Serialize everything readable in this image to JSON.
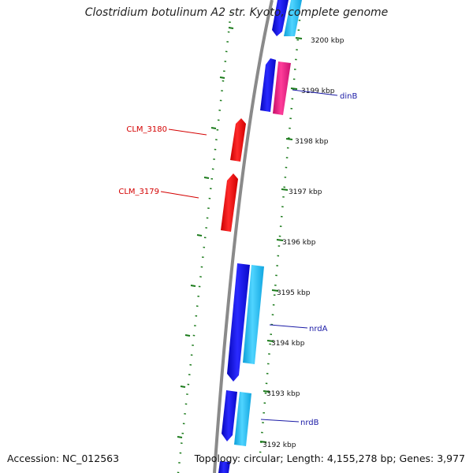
{
  "title": "Clostridium botulinum A2 str. Kyoto, complete genome",
  "accession_text": "Accession: NC_012563",
  "summary_text": "Topology: circular; Length: 4,155,278 bp; Genes: 3,977",
  "colors": {
    "backbone": "#8a8a8a",
    "ticks": "#1a7a1a",
    "forward_gene": "#1010e0",
    "forward_gene_light": "#19b6ee",
    "reverse_gene": "#ee1111",
    "misc_gene": "#e8177f",
    "label_blue": "#1a1aa6",
    "label_red": "#d40000"
  },
  "ticks": [
    {
      "label": "3200 kbp"
    },
    {
      "label": "3199 kbp"
    },
    {
      "label": "3198 kbp"
    },
    {
      "label": "3197 kbp"
    },
    {
      "label": "3196 kbp"
    },
    {
      "label": "3195 kbp"
    },
    {
      "label": "3194 kbp"
    },
    {
      "label": "3193 kbp"
    },
    {
      "label": "3192 kbp"
    }
  ],
  "gene_labels": [
    {
      "name": "dinB",
      "color": "blue"
    },
    {
      "name": "CLM_3180",
      "color": "red"
    },
    {
      "name": "CLM_3179",
      "color": "red"
    },
    {
      "name": "nrdA",
      "color": "blue"
    },
    {
      "name": "nrdB",
      "color": "blue"
    }
  ]
}
